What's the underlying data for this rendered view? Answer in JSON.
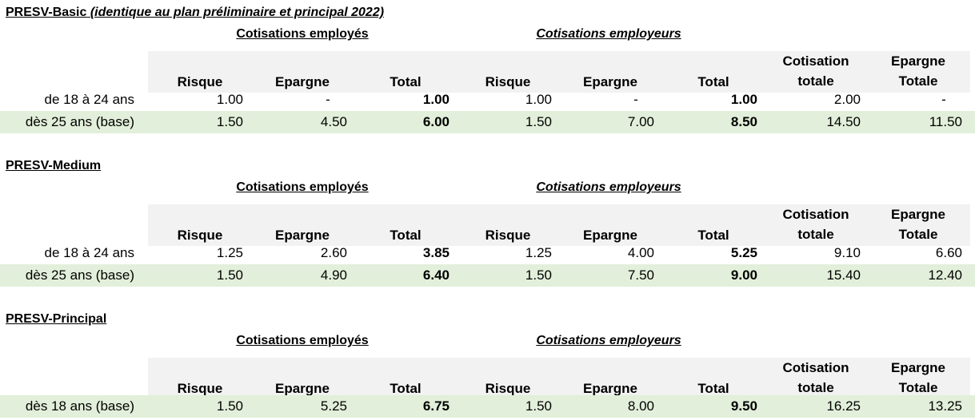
{
  "headers": {
    "group_employes": "Cotisations employés",
    "group_employeurs": "Cotisations employeurs",
    "risque": "Risque",
    "epargne": "Epargne",
    "total": "Total",
    "cotisation_totale_1": "Cotisation",
    "cotisation_totale_2": "totale",
    "epargne_totale_1": "Epargne",
    "epargne_totale_2": "Totale"
  },
  "sections": [
    {
      "title": "PRESV-Basic",
      "subtitle": "(identique au plan préliminaire et principal 2022)",
      "rows": [
        {
          "label": "de 18 à 24 ans",
          "base": false,
          "risque_employes": "1.00",
          "epargne_employes": "-",
          "total_employes": "1.00",
          "risque_employeurs": "1.00",
          "epargne_employeurs": "-",
          "total_employeurs": "1.00",
          "cotisation_totale": "2.00",
          "epargne_totale": "-"
        },
        {
          "label": "dès 25 ans (base)",
          "base": true,
          "risque_employes": "1.50",
          "epargne_employes": "4.50",
          "total_employes": "6.00",
          "risque_employeurs": "1.50",
          "epargne_employeurs": "7.00",
          "total_employeurs": "8.50",
          "cotisation_totale": "14.50",
          "epargne_totale": "11.50"
        }
      ]
    },
    {
      "title": "PRESV-Medium",
      "subtitle": "",
      "rows": [
        {
          "label": "de 18 à 24 ans",
          "base": false,
          "risque_employes": "1.25",
          "epargne_employes": "2.60",
          "total_employes": "3.85",
          "risque_employeurs": "1.25",
          "epargne_employeurs": "4.00",
          "total_employeurs": "5.25",
          "cotisation_totale": "9.10",
          "epargne_totale": "6.60"
        },
        {
          "label": "dès 25 ans (base)",
          "base": true,
          "risque_employes": "1.50",
          "epargne_employes": "4.90",
          "total_employes": "6.40",
          "risque_employeurs": "1.50",
          "epargne_employeurs": "7.50",
          "total_employeurs": "9.00",
          "cotisation_totale": "15.40",
          "epargne_totale": "12.40"
        }
      ]
    },
    {
      "title": "PRESV-Principal",
      "subtitle": "",
      "rows": [
        {
          "label": "dès 18 ans (base)",
          "base": true,
          "risque_employes": "1.50",
          "epargne_employes": "5.25",
          "total_employes": "6.75",
          "risque_employeurs": "1.50",
          "epargne_employeurs": "8.00",
          "total_employeurs": "9.50",
          "cotisation_totale": "16.25",
          "epargne_totale": "13.25"
        }
      ]
    }
  ],
  "colors": {
    "header_band": "#f2f2f2",
    "base_row": "#e2efda"
  }
}
